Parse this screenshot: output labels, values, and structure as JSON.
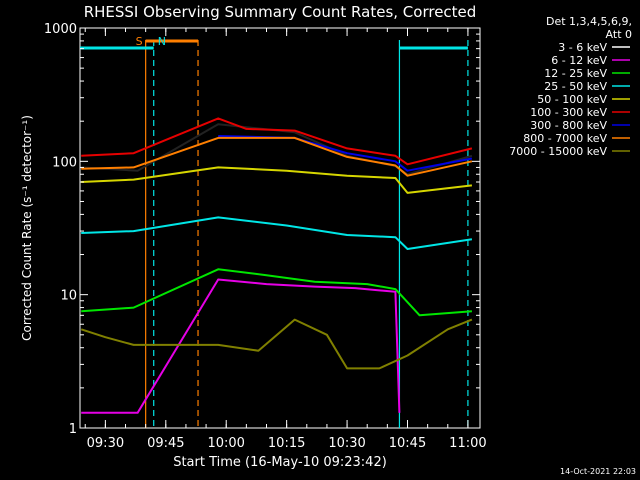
{
  "chart_data": {
    "type": "line",
    "title": "RHESSI Observing Summary Count Rates, Corrected",
    "xlabel": "Start Time (16-May-10 09:23:42)",
    "ylabel": "Corrected Count Rate (s⁻¹ detector⁻¹)",
    "y_scale": "log",
    "ylim": [
      1,
      1000
    ],
    "xlim": [
      "09:23:42",
      "11:03:00"
    ],
    "x_ticks": [
      "09:30",
      "09:45",
      "10:00",
      "10:15",
      "10:30",
      "10:45",
      "11:00"
    ],
    "y_ticks": [
      "1",
      "10",
      "100",
      "1000"
    ],
    "legend": {
      "placement": "right",
      "header": [
        "Det 1,3,4,5,6,9,",
        "Att 0"
      ],
      "entries": [
        {
          "label": "3 - 6 keV",
          "color": "#000000"
        },
        {
          "label": "6 - 12 keV",
          "color": "#e600e6"
        },
        {
          "label": "12 - 25 keV",
          "color": "#00e600"
        },
        {
          "label": "25 - 50 keV",
          "color": "#00e6e6"
        },
        {
          "label": "50 - 100 keV",
          "color": "#d6d600"
        },
        {
          "label": "100 - 300 keV",
          "color": "#e60000"
        },
        {
          "label": "300 - 800 keV",
          "color": "#0000e6"
        },
        {
          "label": "800 - 7000 keV",
          "color": "#ff7f00"
        },
        {
          "label": "7000 - 15000 keV",
          "color": "#808000"
        }
      ]
    },
    "series": [
      {
        "name": "3 - 6 keV",
        "color": "#000000",
        "x": [
          "09:24",
          "09:38",
          "09:58",
          "10:17",
          "10:30",
          "10:42",
          "10:45",
          "11:01"
        ],
        "y": [
          90,
          85,
          190,
          165,
          110,
          92,
          80,
          110
        ]
      },
      {
        "name": "6 - 12 keV",
        "color": "#e600e6",
        "x": [
          "09:24",
          "09:38",
          "09:58",
          "10:10",
          "10:22",
          "10:32",
          "10:42",
          "10:43"
        ],
        "y": [
          1.3,
          1.3,
          13,
          12,
          11.5,
          11.2,
          10.5,
          1.3
        ]
      },
      {
        "name": "12 - 25 keV",
        "color": "#00e600",
        "x": [
          "09:24",
          "09:37",
          "09:58",
          "10:10",
          "10:22",
          "10:35",
          "10:42",
          "10:48",
          "11:01"
        ],
        "y": [
          7.5,
          8,
          15.5,
          14,
          12.5,
          12,
          11,
          7,
          7.5
        ]
      },
      {
        "name": "25 - 50 keV",
        "color": "#00e6e6",
        "x": [
          "09:24",
          "09:37",
          "09:58",
          "10:15",
          "10:30",
          "10:42",
          "10:45",
          "11:01"
        ],
        "y": [
          29,
          30,
          38,
          33,
          28,
          27,
          22,
          26
        ]
      },
      {
        "name": "50 - 100 keV",
        "color": "#d6d600",
        "x": [
          "09:24",
          "09:37",
          "09:58",
          "10:15",
          "10:30",
          "10:42",
          "10:45",
          "11:01"
        ],
        "y": [
          70,
          73,
          90,
          85,
          78,
          75,
          58,
          66
        ]
      },
      {
        "name": "100 - 300 keV",
        "color": "#e60000",
        "x": [
          "09:24",
          "09:37",
          "09:58",
          "10:05",
          "10:17",
          "10:30",
          "10:42",
          "10:45",
          "11:01"
        ],
        "y": [
          110,
          115,
          210,
          175,
          170,
          125,
          110,
          95,
          125
        ]
      },
      {
        "name": "300 - 800 keV",
        "color": "#0000e6",
        "x": [
          "09:58",
          "10:17",
          "10:30",
          "10:42",
          "10:45",
          "11:01"
        ],
        "y": [
          155,
          150,
          115,
          100,
          85,
          105
        ]
      },
      {
        "name": "800 - 7000 keV",
        "color": "#ff7f00",
        "x": [
          "09:24",
          "09:37",
          "09:58",
          "10:17",
          "10:30",
          "10:42",
          "10:45",
          "11:01"
        ],
        "y": [
          88,
          90,
          150,
          150,
          108,
          93,
          78,
          100
        ]
      },
      {
        "name": "7000 - 15000 keV",
        "color": "#808000",
        "x": [
          "09:24",
          "09:30",
          "09:37",
          "09:58",
          "10:08",
          "10:17",
          "10:25",
          "10:30",
          "10:38",
          "10:45",
          "10:55",
          "11:01"
        ],
        "y": [
          5.5,
          4.8,
          4.2,
          4.2,
          3.8,
          6.5,
          5,
          2.8,
          2.8,
          3.5,
          5.5,
          6.5
        ]
      }
    ],
    "annotations": [
      {
        "text": "S",
        "x": "09:40",
        "color": "#ff7f00"
      },
      {
        "text": "N",
        "x": "09:42",
        "color": "#00e6e6"
      }
    ],
    "vertical_lines": [
      {
        "x": "09:40",
        "color": "#ff7f00",
        "style": "solid"
      },
      {
        "x": "09:42",
        "color": "#00e6e6",
        "style": "dashed"
      },
      {
        "x": "09:53",
        "color": "#ff7f00",
        "style": "dashed"
      },
      {
        "x": "10:43",
        "color": "#00e6e6",
        "style": "solid"
      },
      {
        "x": "11:00",
        "color": "#00e6e6",
        "style": "dashed"
      }
    ],
    "top_bars": [
      {
        "color": "#00e6e6",
        "x": [
          "09:23:42",
          "09:42"
        ]
      },
      {
        "color": "#ff7f00",
        "x": [
          "09:40",
          "09:53"
        ]
      },
      {
        "color": "#00e6e6",
        "x": [
          "10:43",
          "11:00"
        ]
      }
    ]
  },
  "footer": {
    "timestamp": "14-Oct-2021 22:03"
  }
}
